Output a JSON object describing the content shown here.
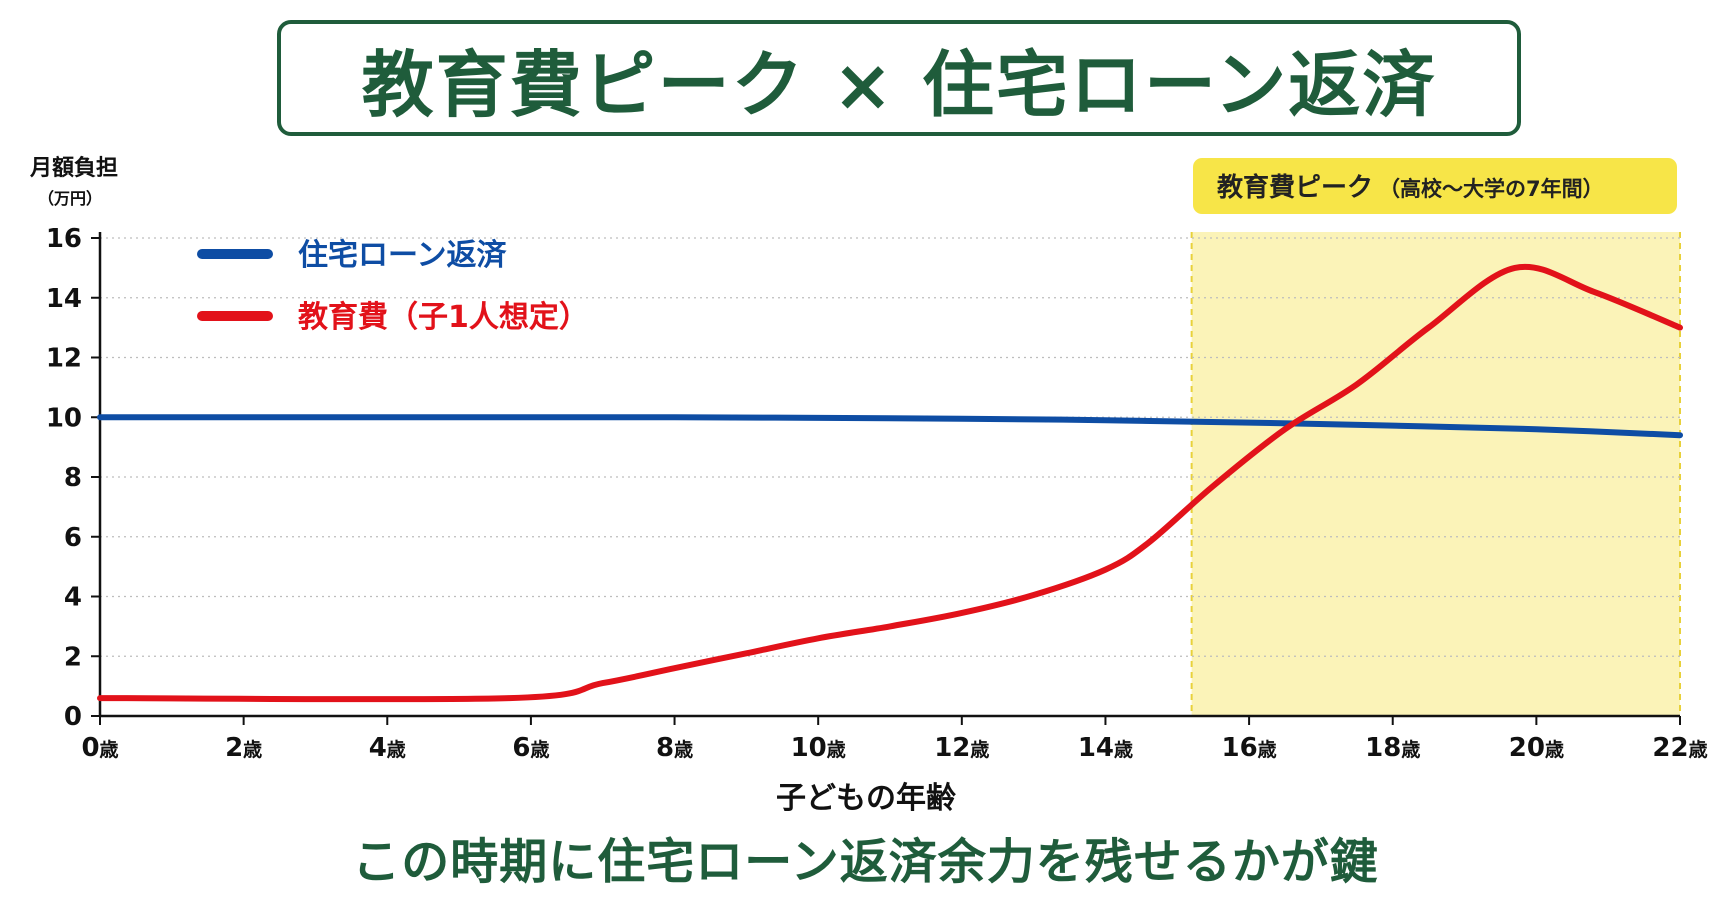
{
  "title": "教育費ピーク × 住宅ローン返済",
  "caption": "この時期に住宅ローン返済余力を残せるかが鍵",
  "colors": {
    "green": "#1f5c3b",
    "loan": "#0e4da4",
    "edu": "#e2121a",
    "peak_fill": "#fbf3b8",
    "peak_label_bg": "#f7e548",
    "peak_border": "#e8d13a",
    "grid": "#bdbdbd"
  },
  "chart_data": {
    "type": "line",
    "ylabel": "月額負担",
    "ylabel_unit": "（万円）",
    "xlabel": "子どもの年齢",
    "x_tick_unit": "歳",
    "ylim": [
      0,
      16
    ],
    "xlim": [
      0,
      22
    ],
    "y_ticks": [
      0,
      2,
      4,
      6,
      8,
      10,
      12,
      14,
      16
    ],
    "x_ticks": [
      0,
      2,
      4,
      6,
      8,
      10,
      12,
      14,
      16,
      18,
      20,
      22
    ],
    "grid": true,
    "legend_position": "top-left",
    "series": [
      {
        "name": "住宅ローン返済",
        "color": "#0e4da4",
        "points": [
          [
            0,
            10.0
          ],
          [
            4,
            10.0
          ],
          [
            8,
            10.0
          ],
          [
            12,
            9.95
          ],
          [
            14,
            9.9
          ],
          [
            16,
            9.82
          ],
          [
            18,
            9.72
          ],
          [
            20,
            9.6
          ],
          [
            22,
            9.4
          ]
        ]
      },
      {
        "name": "教育費（子1人想定）",
        "color": "#e2121a",
        "points": [
          [
            0,
            0.6
          ],
          [
            5.7,
            0.6
          ],
          [
            7,
            1.1
          ],
          [
            8,
            1.6
          ],
          [
            9,
            2.1
          ],
          [
            10,
            2.6
          ],
          [
            11,
            3.0
          ],
          [
            12,
            3.45
          ],
          [
            13,
            4.05
          ],
          [
            14,
            4.9
          ],
          [
            14.6,
            5.8
          ],
          [
            15.5,
            7.7
          ],
          [
            16.5,
            9.6
          ],
          [
            17.5,
            11.1
          ],
          [
            18.5,
            13.0
          ],
          [
            19.7,
            15.0
          ],
          [
            20.8,
            14.2
          ],
          [
            22,
            13.0
          ]
        ]
      }
    ],
    "highlight": {
      "label": "教育費ピーク",
      "sublabel": "（高校〜大学の7年間）",
      "x_start": 15.2,
      "x_end": 22
    }
  }
}
